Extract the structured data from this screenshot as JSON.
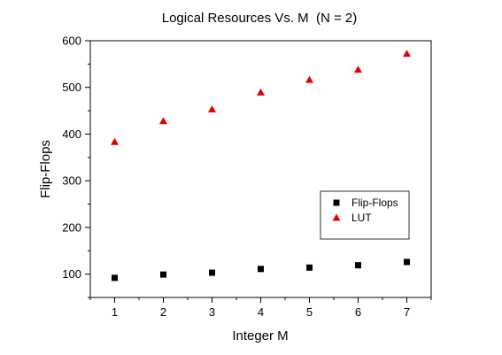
{
  "chart_data": {
    "type": "scatter",
    "title": "Logical Resources Vs. M  (N = 2)",
    "xlabel": "Integer M",
    "ylabel": "Flip-Flops",
    "xlim": [
      0.5,
      7.5
    ],
    "ylim": [
      50,
      600
    ],
    "xticks": [
      1,
      2,
      3,
      4,
      5,
      6,
      7
    ],
    "yticks": [
      100,
      200,
      300,
      400,
      500,
      600
    ],
    "grid": false,
    "legend_position": "bottom-right",
    "series": [
      {
        "name": "Flip-Flops",
        "marker": "square",
        "color": "#000000",
        "x": [
          1,
          2,
          3,
          4,
          5,
          6,
          7
        ],
        "y": [
          92,
          99,
          103,
          111,
          114,
          119,
          126
        ]
      },
      {
        "name": "LUT",
        "marker": "triangle",
        "color": "#e00000",
        "x": [
          1,
          2,
          3,
          4,
          5,
          6,
          7
        ],
        "y": [
          383,
          428,
          453,
          489,
          516,
          538,
          572
        ]
      }
    ]
  }
}
